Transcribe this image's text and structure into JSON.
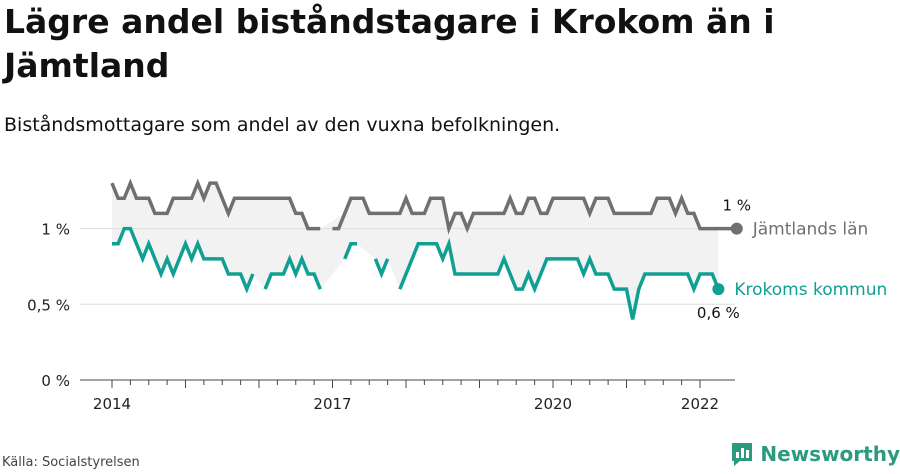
{
  "header": {
    "title": "Lägre andel biståndstagare i Krokom än i Jämtland",
    "subtitle": "Biståndsmottagare som andel av den vuxna befolkningen."
  },
  "footer": {
    "source": "Källa: Socialstyrelsen",
    "brand": "Newsworthy"
  },
  "colors": {
    "jamtland": "#707070",
    "krokom": "#10a093",
    "band": "#f2f2f2",
    "grid": "#dddddd",
    "axis": "#333333",
    "brand": "#2b9b7d"
  },
  "chart_data": {
    "type": "line",
    "title": "Lägre andel biståndstagare i Krokom än i Jämtland",
    "subtitle": "Biståndsmottagare som andel av den vuxna befolkningen.",
    "x_unit": "year",
    "x_ticks": [
      2014,
      2017,
      2020,
      2022
    ],
    "x_range": [
      2013.6,
      2022.5
    ],
    "ylim": [
      0,
      1.4
    ],
    "y_ticks": [
      0,
      0.5,
      1
    ],
    "y_tick_labels": [
      "0 %",
      "0,5 %",
      "1 %"
    ],
    "grid": "horizontal",
    "series": [
      {
        "name": "Jämtlands län",
        "color": "#707070",
        "end_label": "1 %",
        "start": 2014.0,
        "step": 0.0833333,
        "values": [
          1.3,
          1.2,
          1.2,
          1.3,
          1.2,
          1.2,
          1.2,
          1.1,
          1.1,
          1.1,
          1.2,
          1.2,
          1.2,
          1.2,
          1.3,
          1.2,
          1.3,
          1.3,
          1.2,
          1.1,
          1.2,
          1.2,
          1.2,
          1.2,
          1.2,
          1.2,
          1.2,
          1.2,
          1.2,
          1.2,
          1.1,
          1.1,
          1.0,
          1.0,
          1.0,
          null,
          1.0,
          1.0,
          1.1,
          1.2,
          1.2,
          1.2,
          1.1,
          1.1,
          1.1,
          1.1,
          1.1,
          1.1,
          1.2,
          1.1,
          1.1,
          1.1,
          1.2,
          1.2,
          1.2,
          1.0,
          1.1,
          1.1,
          1.0,
          1.1,
          1.1,
          1.1,
          1.1,
          1.1,
          1.1,
          1.2,
          1.1,
          1.1,
          1.2,
          1.2,
          1.1,
          1.1,
          1.2,
          1.2,
          1.2,
          1.2,
          1.2,
          1.2,
          1.1,
          1.2,
          1.2,
          1.2,
          1.1,
          1.1,
          1.1,
          1.1,
          1.1,
          1.1,
          1.1,
          1.2,
          1.2,
          1.2,
          1.1,
          1.2,
          1.1,
          1.1,
          1.0,
          1.0,
          1.0,
          1.0,
          1.0,
          1.0,
          1.0
        ]
      },
      {
        "name": "Krokoms kommun",
        "color": "#10a093",
        "end_label": "0,6 %",
        "start": 2014.0,
        "step": 0.0833333,
        "values": [
          0.9,
          0.9,
          1.0,
          1.0,
          0.9,
          0.8,
          0.9,
          0.8,
          0.7,
          0.8,
          0.7,
          0.8,
          0.9,
          0.8,
          0.9,
          0.8,
          0.8,
          0.8,
          0.8,
          0.7,
          0.7,
          0.7,
          0.6,
          0.7,
          null,
          0.6,
          0.7,
          0.7,
          0.7,
          0.8,
          0.7,
          0.8,
          0.7,
          0.7,
          0.6,
          null,
          null,
          null,
          0.8,
          0.9,
          0.9,
          null,
          null,
          0.8,
          0.7,
          0.8,
          null,
          0.6,
          0.7,
          0.8,
          0.9,
          0.9,
          0.9,
          0.9,
          0.8,
          0.9,
          0.7,
          0.7,
          0.7,
          0.7,
          0.7,
          0.7,
          0.7,
          0.7,
          0.8,
          0.7,
          0.6,
          0.6,
          0.7,
          0.6,
          0.7,
          0.8,
          0.8,
          0.8,
          0.8,
          0.8,
          0.8,
          0.7,
          0.8,
          0.7,
          0.7,
          0.7,
          0.6,
          0.6,
          0.6,
          0.4,
          0.6,
          0.7,
          0.7,
          0.7,
          0.7,
          0.7,
          0.7,
          0.7,
          0.7,
          0.6,
          0.7,
          0.7,
          0.7,
          0.6
        ]
      }
    ]
  }
}
